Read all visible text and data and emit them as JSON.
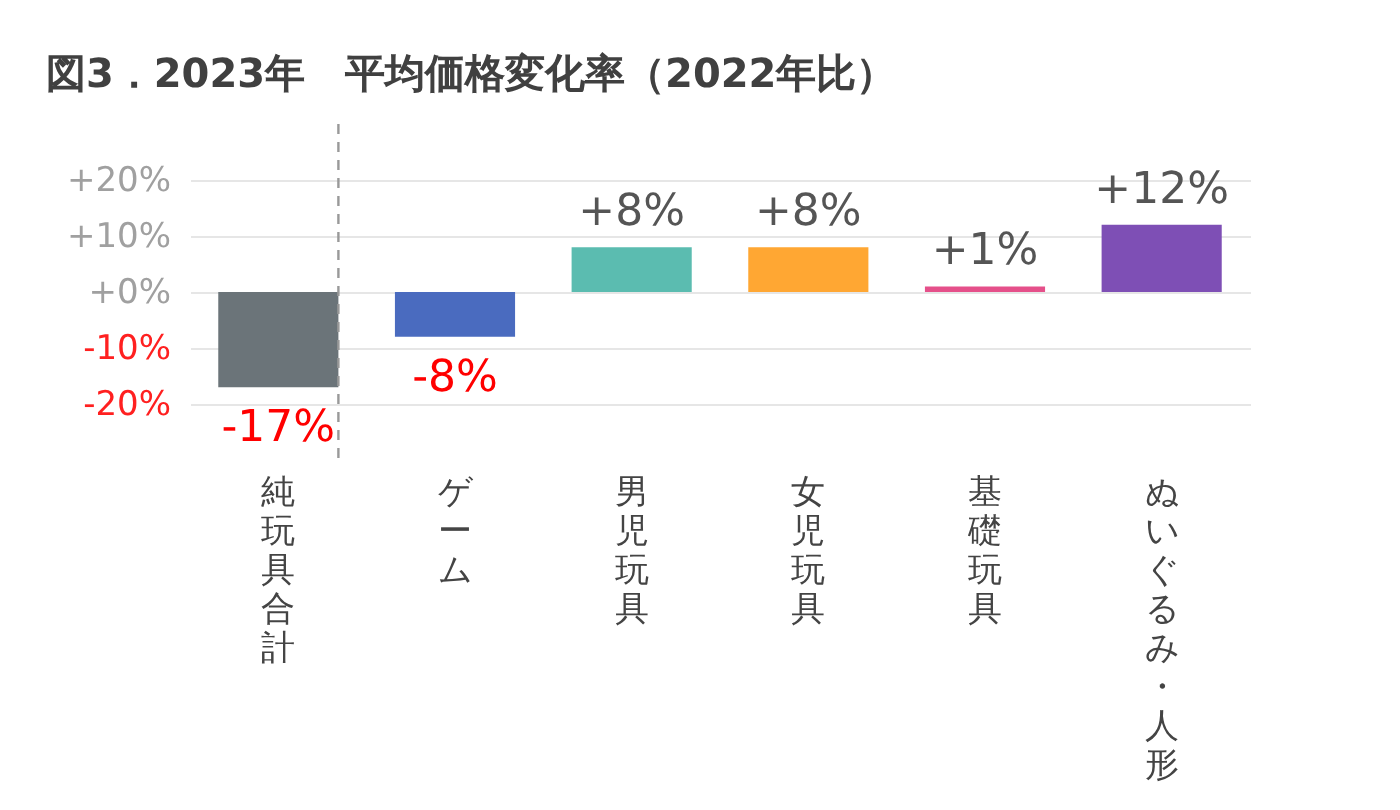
{
  "chart_data": {
    "type": "bar",
    "title": "図3．2023年　平均価格変化率（2022年比）",
    "categories": [
      "純玩具合計",
      "ゲーム",
      "男児玩具",
      "女児玩具",
      "基礎玩具",
      "ぬいぐるみ・人形"
    ],
    "values": [
      -17,
      -8,
      8,
      8,
      1,
      12
    ],
    "colors": [
      "#6b7479",
      "#4a6bbf",
      "#5bbcb0",
      "#ffa733",
      "#e5508a",
      "#7e4fb5"
    ],
    "value_labels": [
      "-17%",
      "-8%",
      "+8%",
      "+8%",
      "+1%",
      "+12%"
    ],
    "ylim": [
      -30,
      30
    ],
    "yticks": [
      {
        "value": -20,
        "label": "-20%"
      },
      {
        "value": -10,
        "label": "-10%"
      },
      {
        "value": 0,
        "label": "+0%"
      },
      {
        "value": 10,
        "label": "+10%"
      },
      {
        "value": 20,
        "label": "+20%"
      }
    ],
    "ref_lines": [
      {
        "axis": "x",
        "value": "純玩具合計",
        "color": "#999999",
        "line_style": "dashed"
      }
    ],
    "grid": "y",
    "legend": false
  }
}
